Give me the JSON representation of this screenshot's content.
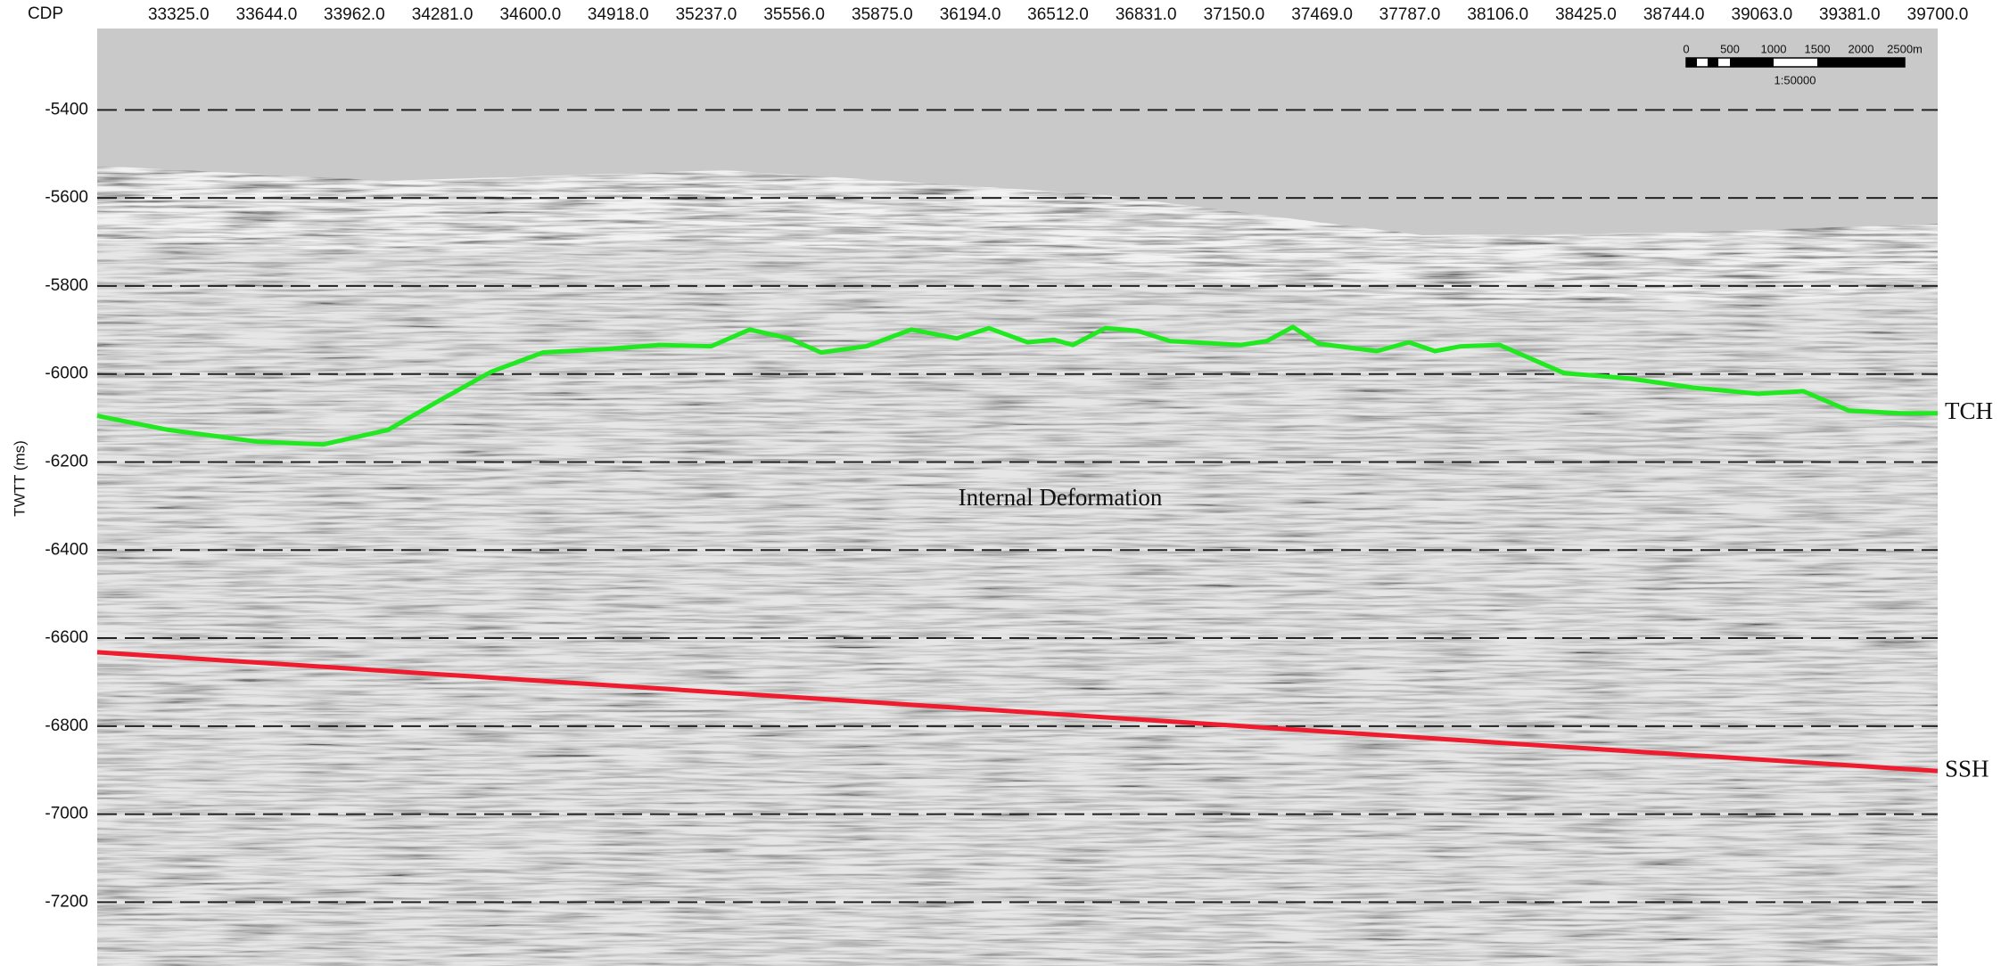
{
  "chart_data": {
    "type": "line",
    "x_label": "CDP",
    "y_label": "TWTT (ms)",
    "xlim": [
      33030,
      39700
    ],
    "ylim": [
      -7345,
      -5215
    ],
    "xticks": [
      {
        "value": 33325,
        "label": "33325.0"
      },
      {
        "value": 33644,
        "label": "33644.0"
      },
      {
        "value": 33962,
        "label": "33962.0"
      },
      {
        "value": 34281,
        "label": "34281.0"
      },
      {
        "value": 34600,
        "label": "34600.0"
      },
      {
        "value": 34918,
        "label": "34918.0"
      },
      {
        "value": 35237,
        "label": "35237.0"
      },
      {
        "value": 35556,
        "label": "35556.0"
      },
      {
        "value": 35875,
        "label": "35875.0"
      },
      {
        "value": 36194,
        "label": "36194.0"
      },
      {
        "value": 36512,
        "label": "36512.0"
      },
      {
        "value": 36831,
        "label": "36831.0"
      },
      {
        "value": 37150,
        "label": "37150.0"
      },
      {
        "value": 37469,
        "label": "37469.0"
      },
      {
        "value": 37787,
        "label": "37787.0"
      },
      {
        "value": 38106,
        "label": "38106.0"
      },
      {
        "value": 38425,
        "label": "38425.0"
      },
      {
        "value": 38744,
        "label": "38744.0"
      },
      {
        "value": 39063,
        "label": "39063.0"
      },
      {
        "value": 39381,
        "label": "39381.0"
      },
      {
        "value": 39700,
        "label": "39700.0"
      }
    ],
    "yticks": [
      -5400,
      -5600,
      -5800,
      -6000,
      -6200,
      -6400,
      -6600,
      -6800,
      -7000,
      -7200
    ],
    "grid": true,
    "series": [
      {
        "name": "TCH",
        "color": "#22e822",
        "x": [
          33030,
          33288,
          33615,
          33850,
          34084,
          34271,
          34458,
          34646,
          34880,
          35067,
          35255,
          35395,
          35536,
          35653,
          35817,
          35981,
          36145,
          36262,
          36402,
          36496,
          36566,
          36683,
          36800,
          36918,
          37175,
          37269,
          37363,
          37456,
          37667,
          37784,
          37878,
          37972,
          38112,
          38346,
          38580,
          38814,
          39049,
          39213,
          39377,
          39564,
          39700
        ],
        "values": [
          -6095,
          -6127,
          -6154,
          -6160,
          -6127,
          -6060,
          -5995,
          -5951,
          -5943,
          -5934,
          -5937,
          -5899,
          -5919,
          -5951,
          -5937,
          -5899,
          -5919,
          -5896,
          -5928,
          -5922,
          -5934,
          -5896,
          -5902,
          -5925,
          -5934,
          -5925,
          -5893,
          -5931,
          -5948,
          -5928,
          -5948,
          -5937,
          -5934,
          -5998,
          -6010,
          -6031,
          -6045,
          -6039,
          -6083,
          -6089,
          -6089
        ]
      },
      {
        "name": "SSH",
        "color": "#ee1c2e",
        "x": [
          33030,
          39700
        ],
        "values": [
          -6632,
          -6902
        ]
      }
    ],
    "annotation": "Internal Deformation",
    "scale_bar": {
      "labels": [
        "0",
        "500",
        "1000",
        "1500",
        "2000",
        "2500m"
      ],
      "ratio": "1:50000"
    }
  }
}
